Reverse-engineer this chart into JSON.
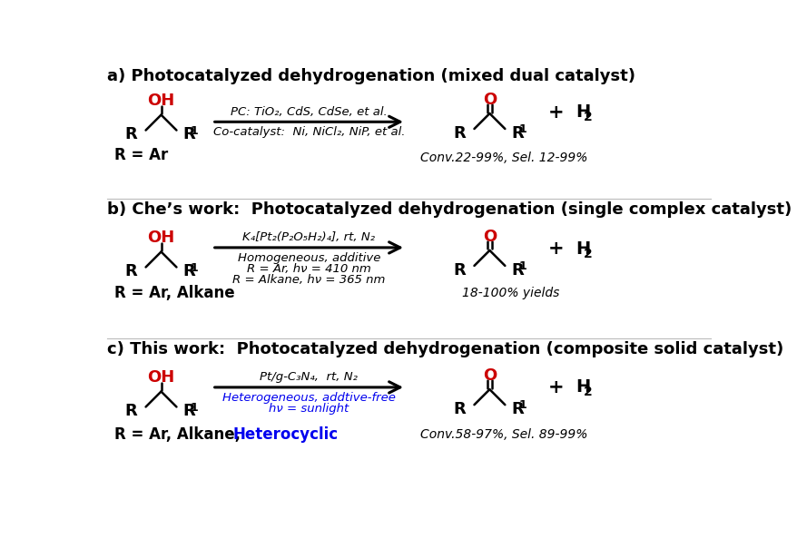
{
  "bg_color": "#ffffff",
  "section_a_title": "a) Photocatalyzed dehydrogenation (mixed dual catalyst)",
  "section_b_title": "b) Che’s work:  Photocatalyzed dehydrogenation (single complex catalyst)",
  "section_c_title": "c) This work:  Photocatalyzed dehydrogenation (composite solid catalyst)",
  "r_eq_ar": "R = Ar",
  "r_eq_ar_alkane": "R = Ar, Alkane",
  "hetero_text": "Heterocyclic",
  "conv_a": "Conv.22-99%, Sel. 12-99%",
  "conv_c": "Conv.58-97%, Sel. 89-99%",
  "yield_b": "18-100% yields",
  "arrow_above_a": "PC: TiO₂, CdS, CdSe, et al.",
  "arrow_below_a": "Co-catalyst:  Ni, NiCl₂, NiP, et al.",
  "arrow_above_b": "K₄[Pt₂(P₂O₅H₂)₄], rt, N₂",
  "arrow_below_b_1": "Homogeneous, additive",
  "arrow_below_b_2": "R = Ar, hν = 410 nm",
  "arrow_below_b_3": "R = Alkane, hν = 365 nm",
  "arrow_above_c": "Pt/g-C₃N₄,  rt, N₂",
  "arrow_below_c_1": "Heterogeneous, addtive-free",
  "arrow_below_c_2": "hν = sunlight",
  "black": "#000000",
  "red": "#cc0000",
  "blue": "#0000ee",
  "figw": 8.79,
  "figh": 5.93,
  "dpi": 100
}
